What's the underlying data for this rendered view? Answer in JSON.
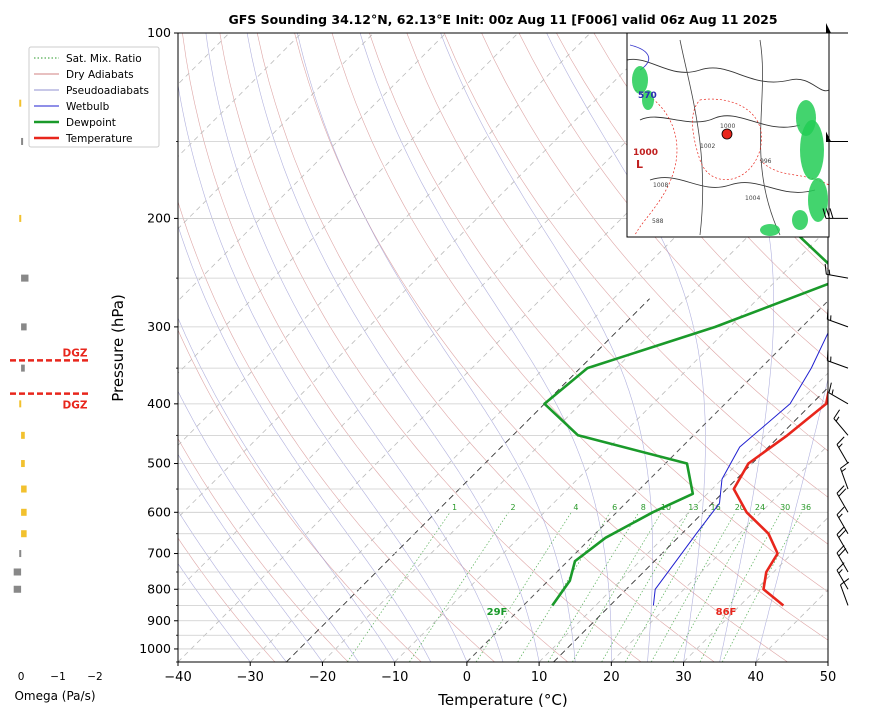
{
  "chart_data": [
    {
      "type": "line",
      "title": "GFS Sounding 34.12°N, 62.13°E Init: 00z Aug 11 [F006] valid 06z Aug 11 2025",
      "xlabel": "Temperature (°C)",
      "ylabel": "Pressure (hPa)",
      "xlim": [
        -40,
        50
      ],
      "ylim": [
        1050,
        100
      ],
      "y_scale": "log",
      "x_ticks": [
        -40,
        -30,
        -20,
        -10,
        0,
        10,
        20,
        30,
        40,
        50
      ],
      "x_tick_labels": [
        "−40",
        "−30",
        "−20",
        "−10",
        "0",
        "10",
        "20",
        "30",
        "40",
        "50"
      ],
      "y_ticks": [
        100,
        200,
        300,
        400,
        500,
        600,
        700,
        800,
        900,
        1000
      ],
      "y_tick_labels": [
        "100",
        "200",
        "300",
        "400",
        "500",
        "600",
        "700",
        "800",
        "900",
        "1000"
      ],
      "grid": true,
      "legend": {
        "placement": "top-left",
        "entries": [
          {
            "label": "Sat. Mix. Ratio",
            "color": "#2a9a2a",
            "style": "dotted"
          },
          {
            "label": "Dry Adiabats",
            "color": "#d08080",
            "style": "solid"
          },
          {
            "label": "Pseudoadiabats",
            "color": "#9090d0",
            "style": "solid"
          },
          {
            "label": "Wetbulb",
            "color": "#1f1fd0",
            "style": "solid"
          },
          {
            "label": "Dewpoint",
            "color": "#1a9a2a",
            "style": "solid"
          },
          {
            "label": "Temperature",
            "color": "#e8261c",
            "style": "solid"
          }
        ]
      },
      "mixing_ratio_labels": [
        "1",
        "2",
        "4",
        "6",
        "8",
        "10",
        "13",
        "16",
        "20",
        "24",
        "30",
        "36"
      ],
      "series": [
        {
          "name": "Temperature",
          "color": "#e8261c",
          "points": [
            [
              36,
              850
            ],
            [
              31,
              800
            ],
            [
              29,
              750
            ],
            [
              28,
              700
            ],
            [
              24,
              650
            ],
            [
              18,
              600
            ],
            [
              13,
              550
            ],
            [
              11.5,
              500
            ],
            [
              13,
              450
            ],
            [
              14,
              400
            ],
            [
              10,
              350
            ],
            [
              4,
              300
            ],
            [
              -3,
              250
            ],
            [
              -9,
              200
            ],
            [
              -14,
              150
            ],
            [
              -17,
              120
            ],
            [
              -19,
              100
            ]
          ]
        },
        {
          "name": "Dewpoint",
          "color": "#1a9a2a",
          "points": [
            [
              4,
              850
            ],
            [
              3,
              775
            ],
            [
              1,
              720
            ],
            [
              2,
              660
            ],
            [
              5,
              600
            ],
            [
              8,
              560
            ],
            [
              3,
              500
            ],
            [
              -16,
              450
            ],
            [
              -25,
              400
            ],
            [
              -24,
              350
            ],
            [
              -12,
              300
            ],
            [
              -1,
              250
            ],
            [
              -18,
              200
            ],
            [
              -24,
              150
            ],
            [
              -22,
              130
            ],
            [
              -21,
              100
            ]
          ]
        },
        {
          "name": "Wetbulb",
          "color": "#1f1fd0",
          "points": [
            [
              18,
              850
            ],
            [
              16,
              800
            ],
            [
              15,
              720
            ],
            [
              14,
              650
            ],
            [
              13,
              580
            ],
            [
              10,
              530
            ],
            [
              8,
              470
            ],
            [
              9,
              400
            ],
            [
              7,
              350
            ],
            [
              4,
              300
            ],
            [
              -3,
              250
            ],
            [
              -11,
              200
            ],
            [
              -16,
              150
            ],
            [
              -17,
              120
            ],
            [
              -19,
              100
            ]
          ]
        }
      ],
      "surface_labels": {
        "dewpoint": "29F",
        "temperature": "86F"
      }
    },
    {
      "type": "bar",
      "title": "",
      "xlabel": "Omega (Pa/s)",
      "xlim": [
        0.3,
        -2
      ],
      "x_ticks": [
        0,
        -1,
        -2
      ],
      "x_tick_labels": [
        "0",
        "−1",
        "−2"
      ],
      "bars": [
        {
          "p": 130,
          "omega": 0.05,
          "color": "#f2c12e"
        },
        {
          "p": 150,
          "omega": -0.05,
          "color": "#888888"
        },
        {
          "p": 200,
          "omega": 0.05,
          "color": "#f2c12e"
        },
        {
          "p": 250,
          "omega": -0.2,
          "color": "#888888"
        },
        {
          "p": 300,
          "omega": -0.15,
          "color": "#888888"
        },
        {
          "p": 350,
          "omega": -0.1,
          "color": "#888888"
        },
        {
          "p": 400,
          "omega": 0.05,
          "color": "#f2c12e"
        },
        {
          "p": 450,
          "omega": -0.1,
          "color": "#f2c12e"
        },
        {
          "p": 500,
          "omega": -0.1,
          "color": "#f2c12e"
        },
        {
          "p": 550,
          "omega": -0.15,
          "color": "#f2c12e"
        },
        {
          "p": 600,
          "omega": -0.15,
          "color": "#f2c12e"
        },
        {
          "p": 650,
          "omega": -0.15,
          "color": "#f2c12e"
        },
        {
          "p": 700,
          "omega": 0.05,
          "color": "#888888"
        },
        {
          "p": 750,
          "omega": 0.2,
          "color": "#888888"
        },
        {
          "p": 800,
          "omega": 0.2,
          "color": "#888888"
        }
      ],
      "dgz": {
        "label": "DGZ",
        "levels": [
          340,
          385
        ],
        "color": "#e8261c"
      }
    }
  ],
  "wind_barbs": [
    {
      "p": 100,
      "dir": 270,
      "speed": 50
    },
    {
      "p": 150,
      "dir": 270,
      "speed": 50
    },
    {
      "p": 200,
      "dir": 270,
      "speed": 30
    },
    {
      "p": 250,
      "dir": 280,
      "speed": 15
    },
    {
      "p": 300,
      "dir": 290,
      "speed": 15
    },
    {
      "p": 350,
      "dir": 290,
      "speed": 15
    },
    {
      "p": 400,
      "dir": 300,
      "speed": 15
    },
    {
      "p": 450,
      "dir": 320,
      "speed": 15
    },
    {
      "p": 500,
      "dir": 330,
      "speed": 15
    },
    {
      "p": 550,
      "dir": 340,
      "speed": 15
    },
    {
      "p": 600,
      "dir": 330,
      "speed": 20
    },
    {
      "p": 650,
      "dir": 330,
      "speed": 15
    },
    {
      "p": 700,
      "dir": 330,
      "speed": 20
    },
    {
      "p": 750,
      "dir": 330,
      "speed": 20
    },
    {
      "p": 800,
      "dir": 330,
      "speed": 15
    },
    {
      "p": 850,
      "dir": 340,
      "speed": 10
    }
  ],
  "inset_map": {
    "contour_labels": [
      "1000",
      "1004",
      "1008",
      "1002",
      "996",
      "588"
    ],
    "height_label": "570",
    "low_label": "L",
    "marker_color": "#e8261c"
  }
}
